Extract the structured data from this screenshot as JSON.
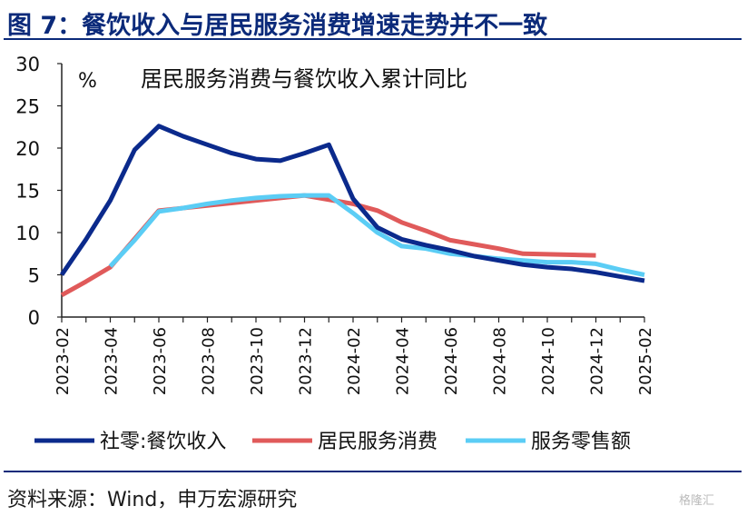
{
  "figure": {
    "title": "图 7：餐饮收入与居民服务消费增速走势并不一致",
    "source": "资料来源：Wind，申万宏源研究",
    "watermark": "格隆汇"
  },
  "chart_data": {
    "type": "line",
    "title": "居民服务消费与餐饮收入累计同比",
    "ylabel": "%",
    "ylim": [
      0,
      30
    ],
    "yticks": [
      0,
      5,
      10,
      15,
      20,
      25,
      30
    ],
    "x_range": [
      "2023-02",
      "2025-02"
    ],
    "xticks": [
      "2023-02",
      "2023-04",
      "2023-06",
      "2023-08",
      "2023-10",
      "2023-12",
      "2024-02",
      "2024-04",
      "2024-06",
      "2024-08",
      "2024-10",
      "2024-12",
      "2025-02"
    ],
    "grid": false,
    "legend": "bottom",
    "series": [
      {
        "name": "社零:餐饮收入",
        "color": "#0b2a8c",
        "points": [
          [
            "2023-02",
            5.0
          ],
          [
            "2023-03",
            9.2
          ],
          [
            "2023-04",
            13.8
          ],
          [
            "2023-05",
            19.8
          ],
          [
            "2023-06",
            22.6
          ],
          [
            "2023-07",
            21.4
          ],
          [
            "2023-08",
            20.4
          ],
          [
            "2023-09",
            19.4
          ],
          [
            "2023-10",
            18.7
          ],
          [
            "2023-11",
            18.5
          ],
          [
            "2023-12",
            19.4
          ],
          [
            "2024-01",
            20.4
          ],
          [
            "2024-02",
            14.0
          ],
          [
            "2024-03",
            10.6
          ],
          [
            "2024-04",
            9.2
          ],
          [
            "2024-05",
            8.5
          ],
          [
            "2024-06",
            7.9
          ],
          [
            "2024-07",
            7.2
          ],
          [
            "2024-08",
            6.7
          ],
          [
            "2024-09",
            6.2
          ],
          [
            "2024-10",
            5.9
          ],
          [
            "2024-11",
            5.7
          ],
          [
            "2024-12",
            5.3
          ],
          [
            "2025-01",
            4.8
          ],
          [
            "2025-02",
            4.3
          ]
        ]
      },
      {
        "name": "居民服务消费",
        "color": "#e05a5a",
        "points": [
          [
            "2023-02",
            2.6
          ],
          [
            "2023-03",
            4.2
          ],
          [
            "2023-04",
            5.9
          ],
          [
            "2023-06",
            12.6
          ],
          [
            "2023-12",
            14.4
          ],
          [
            "2024-02",
            13.4
          ],
          [
            "2024-03",
            12.6
          ],
          [
            "2024-04",
            11.2
          ],
          [
            "2024-05",
            10.2
          ],
          [
            "2024-06",
            9.1
          ],
          [
            "2024-07",
            8.6
          ],
          [
            "2024-08",
            8.1
          ],
          [
            "2024-09",
            7.5
          ],
          [
            "2024-12",
            7.3
          ]
        ]
      },
      {
        "name": "服务零售额",
        "color": "#5bcdf5",
        "points": [
          [
            "2023-04",
            6.0
          ],
          [
            "2023-05",
            9.1
          ],
          [
            "2023-06",
            12.5
          ],
          [
            "2023-07",
            12.9
          ],
          [
            "2023-08",
            13.4
          ],
          [
            "2023-09",
            13.8
          ],
          [
            "2023-10",
            14.1
          ],
          [
            "2023-11",
            14.3
          ],
          [
            "2023-12",
            14.4
          ],
          [
            "2024-01",
            14.4
          ],
          [
            "2024-02",
            12.3
          ],
          [
            "2024-03",
            10.0
          ],
          [
            "2024-04",
            8.4
          ],
          [
            "2024-05",
            8.1
          ],
          [
            "2024-06",
            7.5
          ],
          [
            "2024-07",
            7.2
          ],
          [
            "2024-08",
            6.9
          ],
          [
            "2024-09",
            6.7
          ],
          [
            "2024-10",
            6.5
          ],
          [
            "2024-11",
            6.5
          ],
          [
            "2024-12",
            6.3
          ],
          [
            "2025-01",
            5.6
          ],
          [
            "2025-02",
            5.0
          ]
        ]
      }
    ]
  }
}
